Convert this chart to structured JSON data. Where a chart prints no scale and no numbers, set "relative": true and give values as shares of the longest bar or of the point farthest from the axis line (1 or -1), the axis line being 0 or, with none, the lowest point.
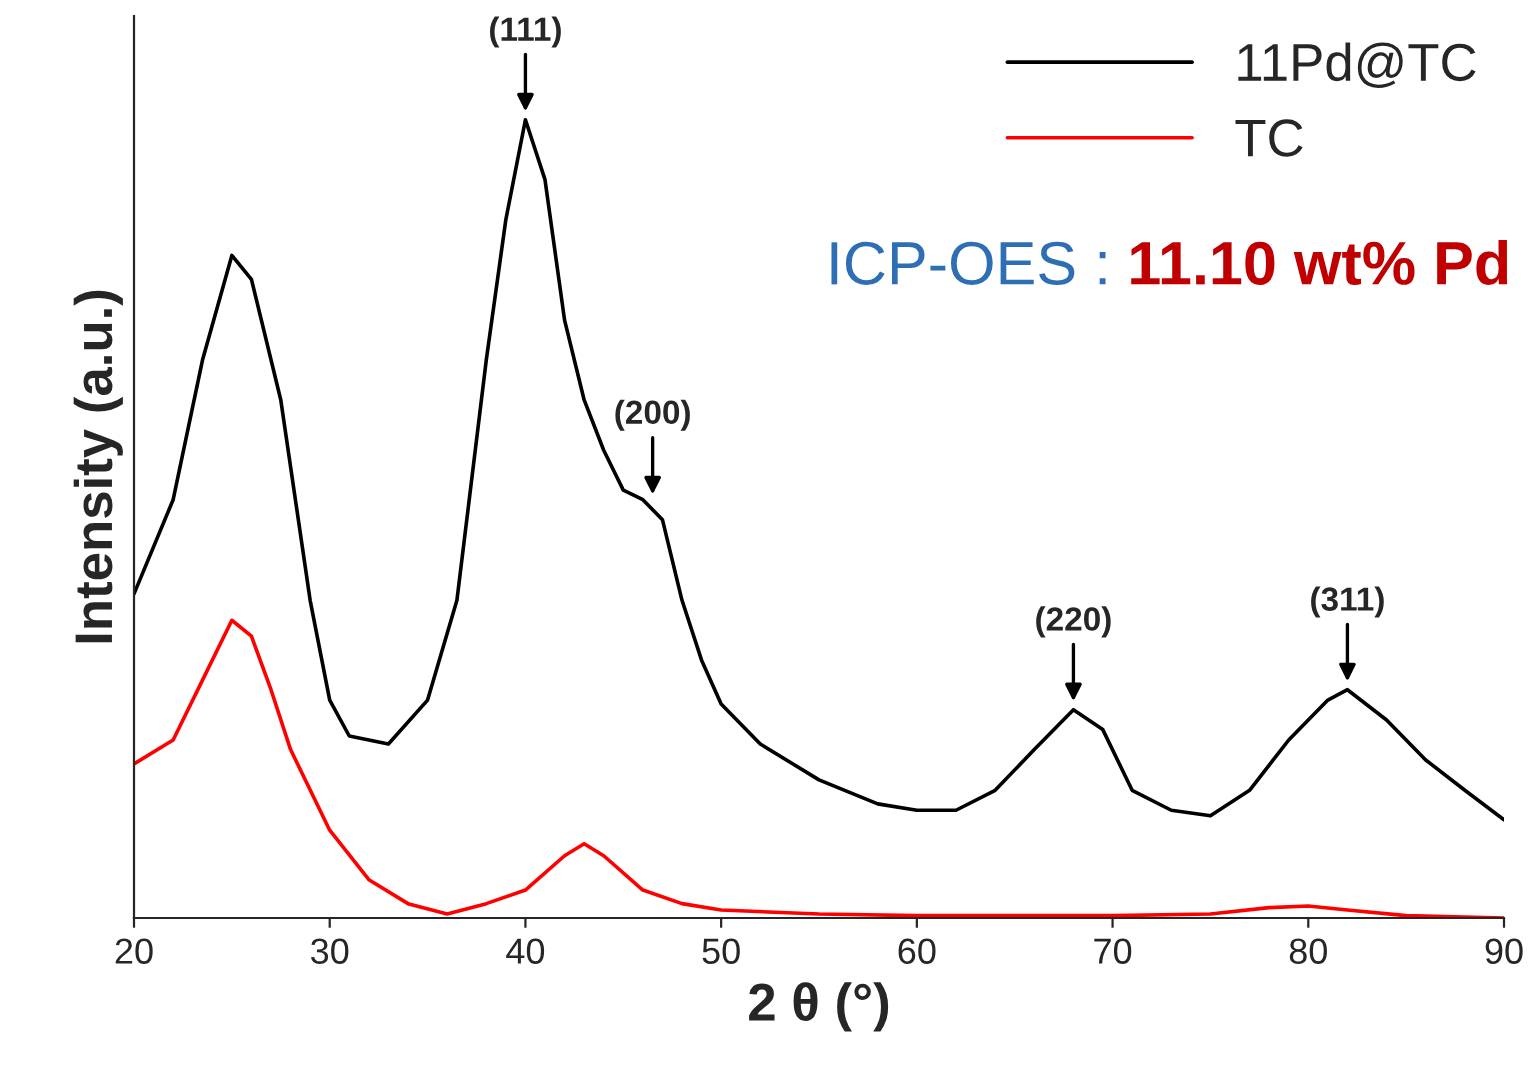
{
  "chart_data": {
    "type": "line",
    "relative": true,
    "xlabel": "2 θ (°)",
    "ylabel": "Intensity (a.u.)",
    "xlim": [
      20,
      90
    ],
    "xticks": [
      20,
      30,
      40,
      50,
      60,
      70,
      80,
      90
    ],
    "tick_labels": "x",
    "legend": "top right",
    "grid": false,
    "series": [
      {
        "name": "11Pd@TC",
        "color": "#000000",
        "x": [
          20,
          22,
          23.5,
          25,
          26,
          27.5,
          29,
          30,
          31,
          33,
          35,
          36.5,
          38,
          39,
          40,
          41,
          42,
          43,
          44,
          45,
          46,
          47,
          48,
          49,
          50,
          52,
          55,
          58,
          60,
          62,
          64,
          66,
          68,
          69.5,
          71,
          73,
          75,
          77,
          79,
          81,
          82,
          84,
          86,
          88,
          90
        ],
        "values": [
          0.406,
          0.524,
          0.699,
          0.83,
          0.8,
          0.649,
          0.398,
          0.273,
          0.228,
          0.218,
          0.273,
          0.398,
          0.699,
          0.875,
          1,
          0.925,
          0.749,
          0.649,
          0.586,
          0.536,
          0.524,
          0.499,
          0.398,
          0.323,
          0.268,
          0.218,
          0.173,
          0.143,
          0.135,
          0.135,
          0.16,
          0.211,
          0.261,
          0.236,
          0.16,
          0.135,
          0.128,
          0.16,
          0.223,
          0.273,
          0.286,
          0.248,
          0.198,
          0.16,
          0.123
        ]
      },
      {
        "name": "TC",
        "color": "#ff0000",
        "x": [
          20,
          22,
          23.5,
          25,
          26,
          27,
          28,
          30,
          32,
          34,
          36,
          38,
          40,
          42,
          43,
          44,
          46,
          48,
          50,
          55,
          60,
          70,
          75,
          78,
          80,
          82,
          85,
          90
        ],
        "values": [
          0.193,
          0.223,
          0.298,
          0.373,
          0.353,
          0.286,
          0.211,
          0.11,
          0.048,
          0.018,
          0.005,
          0.018,
          0.035,
          0.078,
          0.093,
          0.078,
          0.035,
          0.018,
          0.01,
          0.005,
          0.003,
          0.003,
          0.005,
          0.013,
          0.015,
          0.01,
          0.003,
          0
        ]
      }
    ],
    "annotations": [
      {
        "text": "(111)",
        "x": 40,
        "y": 1
      },
      {
        "text": "(200)",
        "x": 46.5,
        "y": 0.52
      },
      {
        "text": "(220)",
        "x": 68,
        "y": 0.261
      },
      {
        "text": "(311)",
        "x": 82,
        "y": 0.286
      },
      "ICP-OES : ",
      "11.10 wt% Pd"
    ]
  }
}
